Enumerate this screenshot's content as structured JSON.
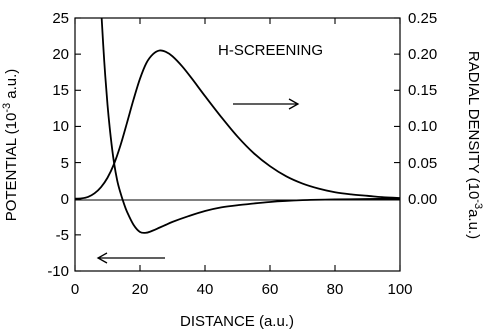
{
  "chart_data": {
    "type": "line",
    "title": "",
    "xlabel": "DISTANCE (a.u.)",
    "ylabel_left": {
      "prefix": "POTENTIAL (10",
      "exp": "-3",
      "suffix": " a.u.)"
    },
    "ylabel_right": {
      "prefix": "RADIAL DENSITY (10",
      "exp": "-3",
      "suffix": "a.u.)"
    },
    "xlim": [
      0,
      100
    ],
    "ylim_left": [
      -10,
      25
    ],
    "ylim_right": [
      -0.1,
      0.25
    ],
    "xticks": [
      "0",
      "20",
      "40",
      "60",
      "80",
      "100"
    ],
    "yticks_left": [
      "-10",
      "-5",
      "0",
      "5",
      "10",
      "15",
      "20",
      "25"
    ],
    "yticks_right": [
      "0.00",
      "0.05",
      "0.10",
      "0.15",
      "0.20",
      "0.25"
    ],
    "annotation": "H-SCREENING",
    "series": [
      {
        "axis": "right",
        "x": [
          0,
          2,
          4,
          6,
          8,
          10,
          12,
          14,
          16,
          18,
          20,
          22,
          24,
          26,
          28,
          30,
          33,
          36,
          40,
          45,
          50,
          55,
          60,
          65,
          70,
          75,
          80,
          85,
          90,
          95,
          100
        ],
        "y": [
          0.0,
          0.0005,
          0.0025,
          0.0075,
          0.016,
          0.029,
          0.048,
          0.074,
          0.105,
          0.137,
          0.166,
          0.188,
          0.2,
          0.205,
          0.203,
          0.197,
          0.183,
          0.166,
          0.142,
          0.113,
          0.086,
          0.063,
          0.045,
          0.031,
          0.021,
          0.014,
          0.009,
          0.006,
          0.004,
          0.002,
          0.001
        ]
      },
      {
        "axis": "left",
        "x": [
          8.2,
          9,
          10,
          11,
          12,
          13,
          14,
          15,
          16,
          18,
          20,
          22,
          24,
          26,
          28,
          30,
          35,
          40,
          45,
          50,
          60,
          70,
          80,
          90,
          100
        ],
        "y": [
          25,
          19,
          13,
          8.5,
          5,
          2.5,
          0.8,
          -0.6,
          -1.8,
          -3.6,
          -4.6,
          -4.7,
          -4.4,
          -4.0,
          -3.6,
          -3.2,
          -2.4,
          -1.7,
          -1.2,
          -0.9,
          -0.45,
          -0.2,
          -0.1,
          -0.05,
          0
        ]
      }
    ]
  }
}
